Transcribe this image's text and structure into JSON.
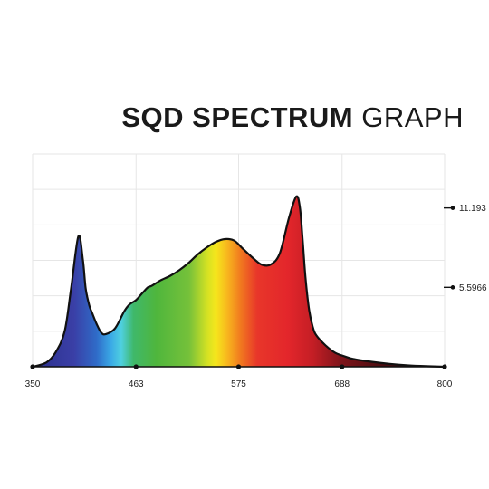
{
  "title": {
    "bold": "SQD SPECTRUM",
    "light": "GRAPH"
  },
  "chart_data": {
    "type": "area",
    "title": "SQD SPECTRUM GRAPH",
    "xlabel": "",
    "ylabel": "",
    "xlim": [
      350,
      800
    ],
    "ylim": [
      0,
      15
    ],
    "grid": true,
    "x_ticks": [
      {
        "value": 350,
        "label": "350"
      },
      {
        "value": 463,
        "label": "463"
      },
      {
        "value": 575,
        "label": "575"
      },
      {
        "value": 688,
        "label": "688"
      },
      {
        "value": 800,
        "label": "800"
      }
    ],
    "y_ticks": [
      {
        "value": 5.5966,
        "label": "5.5966"
      },
      {
        "value": 11.193,
        "label": "11.193"
      }
    ],
    "fill": "visible-spectrum gradient",
    "x": [
      350,
      365,
      375,
      385,
      392,
      400,
      405,
      408,
      412,
      415,
      420,
      425,
      430,
      440,
      450,
      456,
      463,
      470,
      476,
      480,
      490,
      500,
      510,
      520,
      530,
      540,
      550,
      560,
      570,
      580,
      590,
      600,
      610,
      620,
      630,
      638,
      642,
      645,
      648,
      652,
      656,
      660,
      670,
      680,
      690,
      700,
      720,
      740,
      760,
      780,
      800
    ],
    "values": [
      0,
      0.3,
      1.0,
      2.5,
      5.5,
      9.2,
      7.5,
      5.5,
      4.3,
      3.8,
      3.0,
      2.4,
      2.3,
      2.7,
      3.9,
      4.4,
      4.7,
      5.2,
      5.6,
      5.7,
      6.1,
      6.4,
      6.8,
      7.3,
      7.9,
      8.4,
      8.8,
      9.0,
      8.9,
      8.3,
      7.7,
      7.2,
      7.2,
      8.0,
      10.5,
      12.0,
      11.2,
      8.9,
      6.3,
      4.0,
      2.8,
      2.2,
      1.5,
      1.0,
      0.75,
      0.55,
      0.35,
      0.2,
      0.1,
      0.04,
      0
    ]
  }
}
